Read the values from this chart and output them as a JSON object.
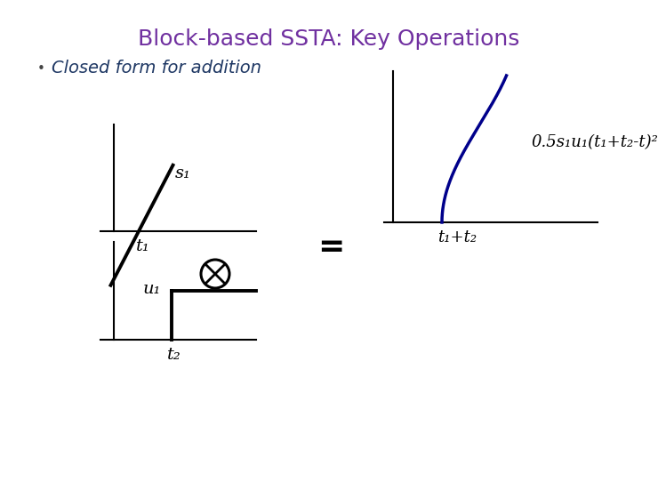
{
  "title": "Block-based SSTA: Key Operations",
  "title_color": "#7030A0",
  "bullet_text": "Closed form for addition",
  "bullet_color": "#1F3864",
  "background_color": "#FFFFFF",
  "ramp_label": "s₁",
  "step_label": "u₁",
  "t1_label": "t₁",
  "t2_label": "t₂",
  "result_label": "0.5s₁u₁(t₁+t₂-t)²",
  "result_xlabel": "t₁+t₂",
  "curve_color": "#00008B",
  "axes_color": "#000000"
}
